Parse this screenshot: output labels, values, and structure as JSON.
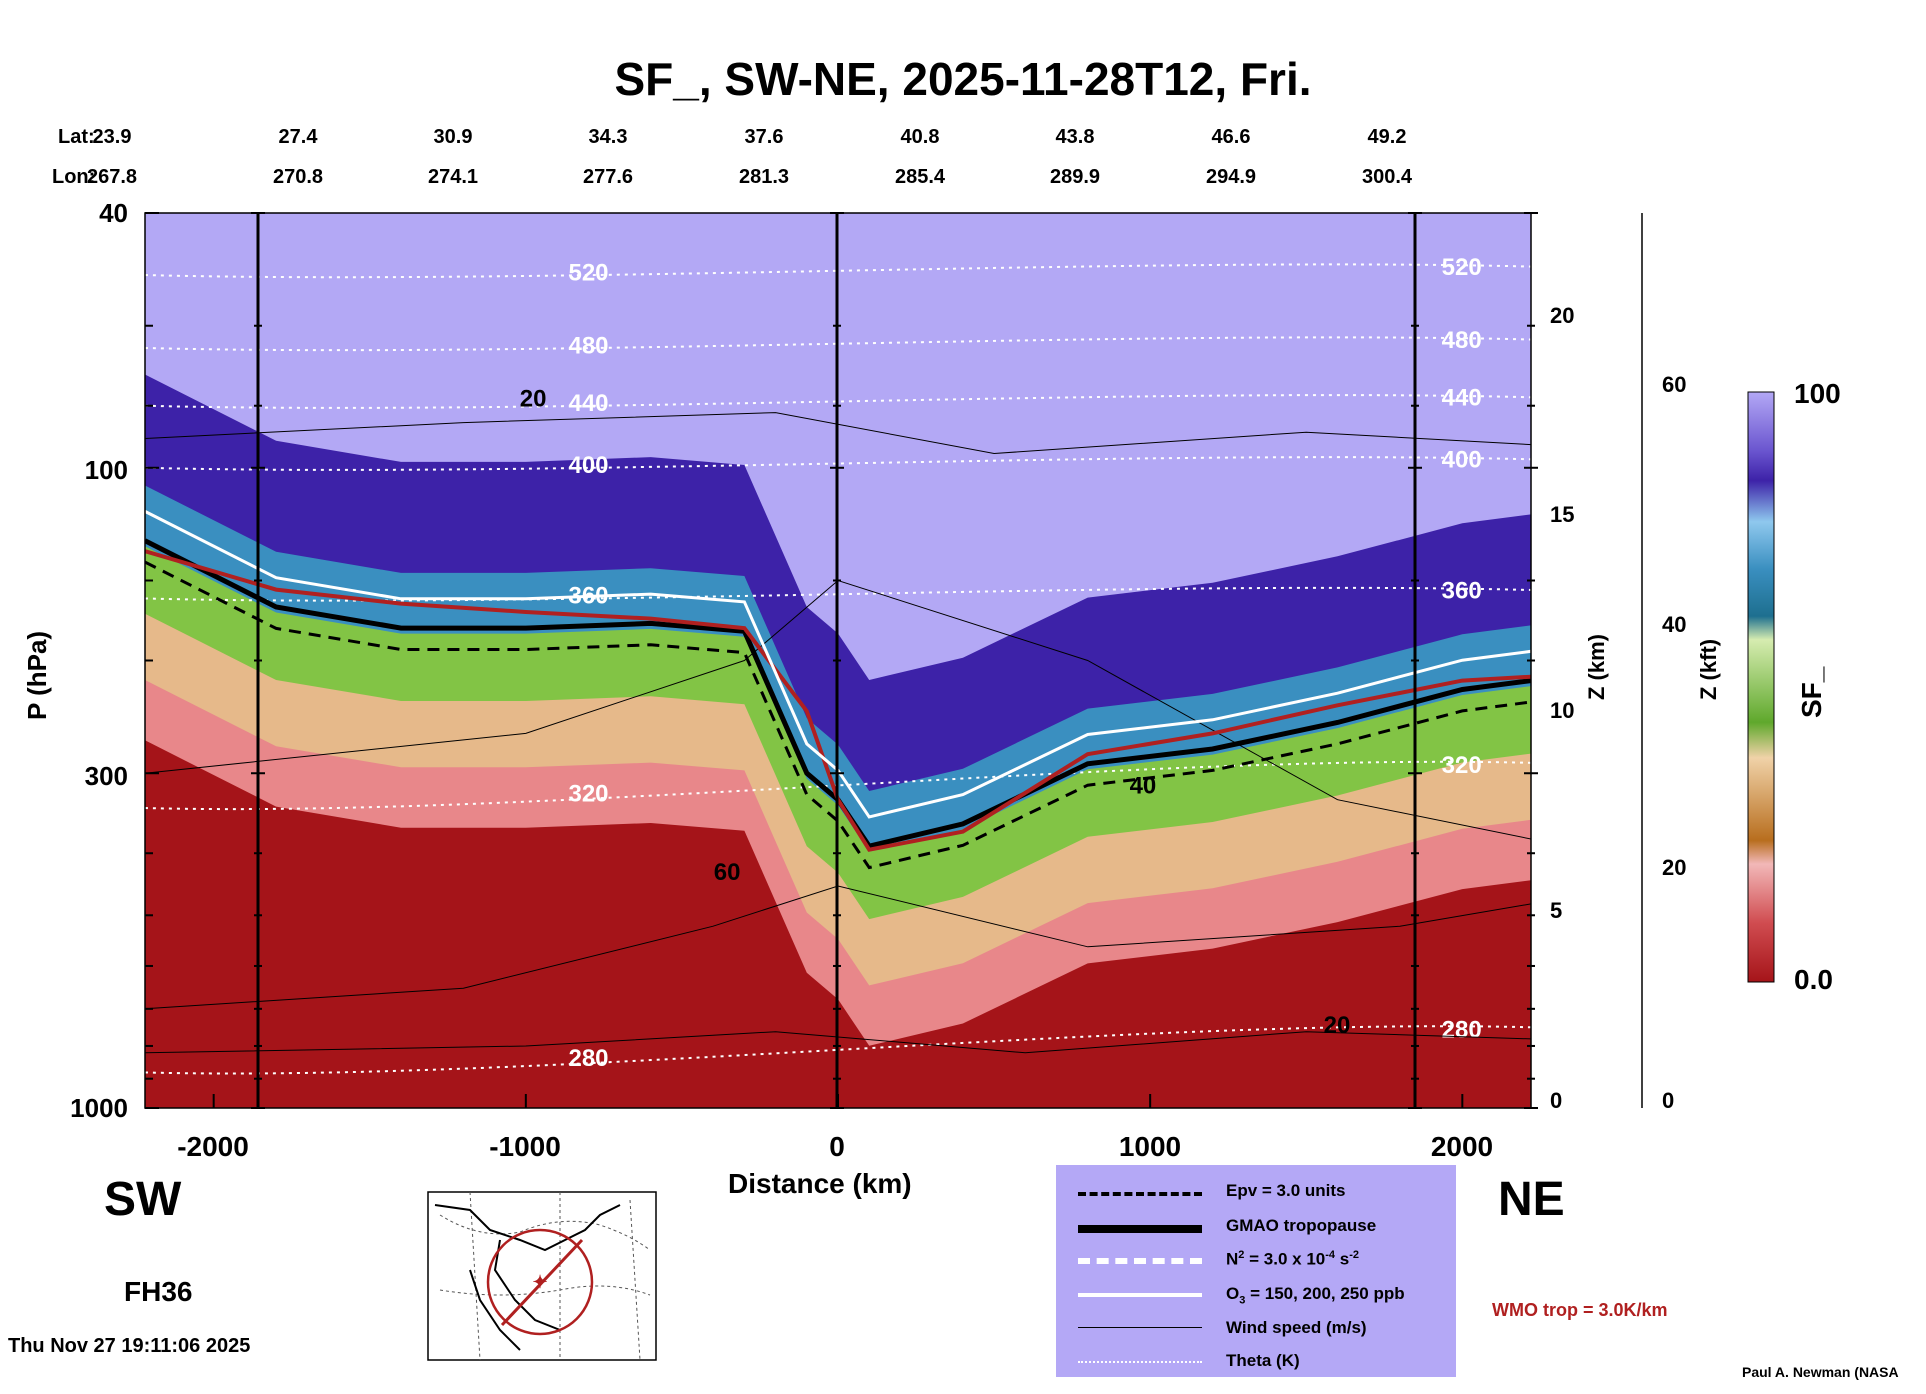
{
  "chart_data": {
    "type": "heatmap",
    "title": "SF_, SW-NE, 2025-11-28T12, Fri.",
    "xlabel": "Distance (km)",
    "ylabel": "P (hPa)",
    "right_axis_km_label": "Z (km)",
    "right_axis_kft_label": "Z (kft)",
    "colorbar_label": "SF_",
    "colorbar_max": "100",
    "colorbar_min": "0.0",
    "x_ticks": [
      "-2000",
      "-1000",
      "0",
      "1000",
      "2000"
    ],
    "x_range": [
      -2220,
      2220
    ],
    "p_ticks": [
      "40",
      "100",
      "300",
      "1000"
    ],
    "p_range": [
      1000,
      40
    ],
    "z_km_ticks": [
      "0",
      "5",
      "10",
      "15",
      "20"
    ],
    "z_kft_ticks": [
      "0",
      "20",
      "40",
      "60"
    ],
    "lat_label": "Lat:",
    "lon_label": "Lon:",
    "lat_values": [
      "23.9",
      "27.4",
      "30.9",
      "34.3",
      "37.6",
      "40.8",
      "43.8",
      "46.6",
      "49.2"
    ],
    "lon_values": [
      "267.8",
      "270.8",
      "274.1",
      "277.6",
      "281.3",
      "285.4",
      "289.9",
      "294.9",
      "300.4"
    ],
    "theta_contour_labels": [
      "520",
      "480",
      "440",
      "400",
      "360",
      "320",
      "280"
    ],
    "wind_contour_labels": [
      "20",
      "40",
      "60"
    ],
    "series": [
      {
        "name": "GMAO tropopause (hPa)",
        "x": [
          -2220,
          -1800,
          -1400,
          -1000,
          -600,
          -300,
          -100,
          0,
          100,
          400,
          800,
          1200,
          1600,
          2000,
          2220
        ],
        "values": [
          130,
          165,
          178,
          178,
          175,
          180,
          300,
          330,
          390,
          360,
          290,
          275,
          250,
          222,
          215
        ]
      },
      {
        "name": "WMO trop (hPa)",
        "x": [
          -2220,
          -1800,
          -1400,
          -1000,
          -600,
          -300,
          -100,
          0,
          100,
          400,
          800,
          1200,
          1600,
          2000,
          2220
        ],
        "values": [
          135,
          155,
          163,
          168,
          172,
          178,
          240,
          330,
          395,
          370,
          280,
          260,
          235,
          215,
          212
        ]
      }
    ],
    "sf_field": "SF_ values near 0 (red) in the troposphere below ~500 hPa, transitional (tan/green, ~30-50) near the tropopause, and ~70-100 (blue/purple) in the stratosphere"
  },
  "labels": {
    "sw": "SW",
    "ne": "NE",
    "forecast_hour": "FH36",
    "timestamp": "Thu Nov 27 19:11:06 2025",
    "wmo_trop": "WMO trop = 3.0K/km",
    "credit": "Paul A. Newman (NASA"
  },
  "legend": [
    {
      "label": "Epv = 3.0 units"
    },
    {
      "label": "GMAO tropopause"
    },
    {
      "label_main": "N",
      "label_sup": "2",
      "label_rest": " = 3.0 x 10",
      "label_exp": "-4",
      "label_unit": " s",
      "label_unit_exp": "-2"
    },
    {
      "label_main": "O",
      "label_sub": "3",
      "label_rest": " = 150, 200, 250 ppb"
    },
    {
      "label": "Wind speed (m/s)"
    },
    {
      "label": "Theta (K)"
    }
  ],
  "colors": {
    "background": "#ffffff",
    "legend_bg": "#b4a8f6",
    "wmo_trop": "#b02020",
    "strat_top": "#b3a8f5",
    "strat_dark": "#3d22a8",
    "blue": "#3a8fc0",
    "green": "#82c445",
    "tan": "#e6b98a",
    "pink": "#e8878a",
    "red": "#a51419"
  }
}
